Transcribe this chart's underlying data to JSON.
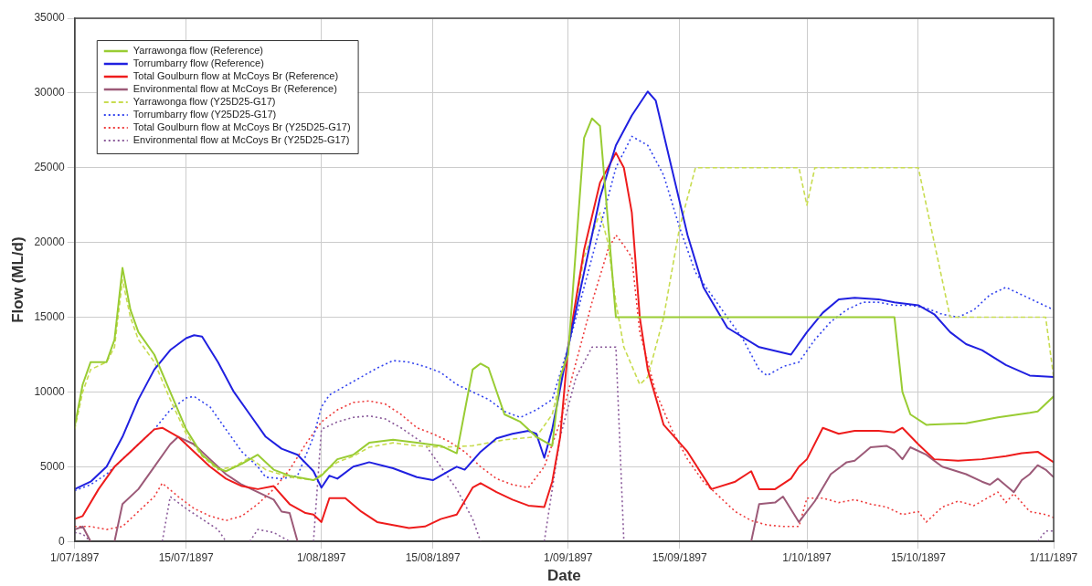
{
  "chart_data": {
    "type": "line",
    "xlabel": "Date",
    "ylabel": "Flow (ML/d)",
    "grid": true,
    "legend": "top left",
    "marker": "none",
    "xlim": [
      "1897-07-01",
      "1897-11-01"
    ],
    "xticks": [
      {
        "value": "1897-07-01",
        "label": "1/07/1897"
      },
      {
        "value": "1897-07-15",
        "label": "15/07/1897"
      },
      {
        "value": "1897-08-01",
        "label": "1/08/1897"
      },
      {
        "value": "1897-08-15",
        "label": "15/08/1897"
      },
      {
        "value": "1897-09-01",
        "label": "1/09/1897"
      },
      {
        "value": "1897-09-15",
        "label": "15/09/1897"
      },
      {
        "value": "1897-10-01",
        "label": "1/10/1897"
      },
      {
        "value": "1897-10-15",
        "label": "15/10/1897"
      },
      {
        "value": "1897-11-01",
        "label": "1/11/1897"
      }
    ],
    "ylim": [
      0,
      35000
    ],
    "yticks": [
      0,
      5000,
      10000,
      15000,
      20000,
      25000,
      30000,
      35000
    ],
    "series": [
      {
        "name": "Yarrawonga flow (Reference)",
        "color": "#99cc33",
        "line_style": "solid",
        "x": [
          "1897-07-01",
          "1897-07-02",
          "1897-07-03",
          "1897-07-05",
          "1897-07-06",
          "1897-07-07",
          "1897-07-08",
          "1897-07-09",
          "1897-07-11",
          "1897-07-13",
          "1897-07-15",
          "1897-07-17",
          "1897-07-19",
          "1897-07-20",
          "1897-07-22",
          "1897-07-24",
          "1897-07-26",
          "1897-07-28",
          "1897-07-31",
          "1897-08-01",
          "1897-08-03",
          "1897-08-05",
          "1897-08-07",
          "1897-08-10",
          "1897-08-13",
          "1897-08-16",
          "1897-08-18",
          "1897-08-20",
          "1897-08-21",
          "1897-08-22",
          "1897-08-24",
          "1897-08-26",
          "1897-08-28",
          "1897-08-30",
          "1897-08-31",
          "1897-09-01",
          "1897-09-03",
          "1897-09-04",
          "1897-09-05",
          "1897-09-07",
          "1897-10-12",
          "1897-10-13",
          "1897-10-14",
          "1897-10-16",
          "1897-10-21",
          "1897-10-25",
          "1897-10-29",
          "1897-10-30",
          "1897-11-01"
        ],
        "values": [
          7700,
          10500,
          12000,
          12000,
          13500,
          18300,
          15500,
          14000,
          12500,
          10000,
          7500,
          5800,
          4900,
          4700,
          5200,
          5800,
          4800,
          4400,
          4100,
          4400,
          5500,
          5800,
          6600,
          6800,
          6600,
          6400,
          5900,
          11500,
          11900,
          11600,
          8500,
          8000,
          7000,
          6400,
          11000,
          12500,
          27000,
          28300,
          27800,
          15000,
          15000,
          10000,
          8500,
          7800,
          7900,
          8300,
          8600,
          8700,
          9700
        ]
      },
      {
        "name": "Torrumbarry flow (Reference)",
        "color": "#2020e0",
        "line_style": "solid",
        "x": [
          "1897-07-01",
          "1897-07-03",
          "1897-07-05",
          "1897-07-07",
          "1897-07-09",
          "1897-07-11",
          "1897-07-13",
          "1897-07-15",
          "1897-07-16",
          "1897-07-17",
          "1897-07-19",
          "1897-07-21",
          "1897-07-23",
          "1897-07-25",
          "1897-07-27",
          "1897-07-29",
          "1897-07-31",
          "1897-08-01",
          "1897-08-02",
          "1897-08-03",
          "1897-08-05",
          "1897-08-07",
          "1897-08-10",
          "1897-08-13",
          "1897-08-15",
          "1897-08-17",
          "1897-08-18",
          "1897-08-19",
          "1897-08-21",
          "1897-08-23",
          "1897-08-25",
          "1897-08-27",
          "1897-08-28",
          "1897-08-29",
          "1897-08-30",
          "1897-09-01",
          "1897-09-03",
          "1897-09-05",
          "1897-09-07",
          "1897-09-09",
          "1897-09-11",
          "1897-09-12",
          "1897-09-14",
          "1897-09-16",
          "1897-09-18",
          "1897-09-21",
          "1897-09-25",
          "1897-09-29",
          "1897-10-01",
          "1897-10-03",
          "1897-10-05",
          "1897-10-07",
          "1897-10-10",
          "1897-10-12",
          "1897-10-15",
          "1897-10-17",
          "1897-10-19",
          "1897-10-21",
          "1897-10-23",
          "1897-10-26",
          "1897-10-29",
          "1897-11-01"
        ],
        "values": [
          3500,
          4000,
          5000,
          7000,
          9500,
          11500,
          12800,
          13600,
          13800,
          13700,
          12000,
          10000,
          8500,
          7000,
          6200,
          5800,
          4700,
          3600,
          4400,
          4200,
          5000,
          5300,
          4900,
          4300,
          4100,
          4700,
          5000,
          4800,
          6000,
          6900,
          7200,
          7400,
          7200,
          5600,
          7500,
          13000,
          18000,
          23000,
          26500,
          28500,
          30100,
          29500,
          25000,
          20500,
          17000,
          14300,
          13000,
          12500,
          14000,
          15300,
          16200,
          16300,
          16200,
          16000,
          15800,
          15200,
          14000,
          13200,
          12800,
          11800,
          11100,
          11000
        ]
      },
      {
        "name": "Total Goulburn flow at McCoys Br (Reference)",
        "color": "#ee1c1c",
        "line_style": "solid",
        "x": [
          "1897-07-01",
          "1897-07-02",
          "1897-07-04",
          "1897-07-06",
          "1897-07-08",
          "1897-07-10",
          "1897-07-11",
          "1897-07-12",
          "1897-07-14",
          "1897-07-16",
          "1897-07-18",
          "1897-07-20",
          "1897-07-22",
          "1897-07-24",
          "1897-07-26",
          "1897-07-28",
          "1897-07-30",
          "1897-07-31",
          "1897-08-01",
          "1897-08-02",
          "1897-08-04",
          "1897-08-06",
          "1897-08-08",
          "1897-08-10",
          "1897-08-12",
          "1897-08-14",
          "1897-08-16",
          "1897-08-18",
          "1897-08-20",
          "1897-08-21",
          "1897-08-23",
          "1897-08-25",
          "1897-08-27",
          "1897-08-29",
          "1897-08-30",
          "1897-08-31",
          "1897-09-01",
          "1897-09-03",
          "1897-09-05",
          "1897-09-07",
          "1897-09-08",
          "1897-09-09",
          "1897-09-10",
          "1897-09-11",
          "1897-09-13",
          "1897-09-16",
          "1897-09-19",
          "1897-09-22",
          "1897-09-24",
          "1897-09-25",
          "1897-09-27",
          "1897-09-29",
          "1897-09-30",
          "1897-10-01",
          "1897-10-03",
          "1897-10-05",
          "1897-10-07",
          "1897-10-10",
          "1897-10-12",
          "1897-10-13",
          "1897-10-15",
          "1897-10-17",
          "1897-10-20",
          "1897-10-23",
          "1897-10-26",
          "1897-10-28",
          "1897-10-30",
          "1897-11-01"
        ],
        "values": [
          1500,
          1700,
          3500,
          5000,
          6000,
          7000,
          7500,
          7600,
          7000,
          6000,
          5000,
          4200,
          3700,
          3500,
          3700,
          2500,
          1900,
          1800,
          1300,
          2900,
          2900,
          2000,
          1300,
          1100,
          900,
          1000,
          1500,
          1800,
          3600,
          3900,
          3300,
          2800,
          2400,
          2300,
          4000,
          7000,
          13000,
          19500,
          24000,
          26000,
          25000,
          22000,
          15000,
          11500,
          7800,
          6000,
          3500,
          4000,
          4700,
          3500,
          3500,
          4200,
          5000,
          5500,
          7600,
          7200,
          7400,
          7400,
          7300,
          7600,
          6500,
          5500,
          5400,
          5500,
          5700,
          5900,
          6000,
          5300
        ]
      },
      {
        "name": "Environmental flow at McCoys Br (Reference)",
        "color": "#9c5a78",
        "line_style": "solid",
        "x": [
          "1897-07-01",
          "1897-07-02",
          "1897-07-03",
          "1897-07-04",
          "1897-07-06",
          "1897-07-07",
          "1897-07-09",
          "1897-07-11",
          "1897-07-13",
          "1897-07-14",
          "1897-07-16",
          "1897-07-18",
          "1897-07-20",
          "1897-07-22",
          "1897-07-24",
          "1897-07-26",
          "1897-07-27",
          "1897-07-28",
          "1897-07-29",
          "1897-08-15",
          "1897-09-24",
          "1897-09-25",
          "1897-09-27",
          "1897-09-28",
          "1897-09-30",
          "1897-10-02",
          "1897-10-04",
          "1897-10-06",
          "1897-10-07",
          "1897-10-09",
          "1897-10-11",
          "1897-10-12",
          "1897-10-13",
          "1897-10-14",
          "1897-10-16",
          "1897-10-18",
          "1897-10-21",
          "1897-10-23",
          "1897-10-24",
          "1897-10-25",
          "1897-10-27",
          "1897-10-28",
          "1897-10-29",
          "1897-10-30",
          "1897-10-31",
          "1897-11-01"
        ],
        "values": [
          800,
          1000,
          0,
          null,
          0,
          2500,
          3500,
          5000,
          6500,
          7000,
          6500,
          5500,
          4500,
          3800,
          3300,
          2800,
          2000,
          1900,
          0,
          null,
          0,
          2500,
          2600,
          3000,
          1300,
          2700,
          4500,
          5300,
          5400,
          6300,
          6400,
          6100,
          5500,
          6300,
          5800,
          5000,
          4500,
          4000,
          3800,
          4200,
          3300,
          4100,
          4500,
          5100,
          4800,
          4300
        ]
      },
      {
        "name": "Yarrawonga flow (Y25D25-G17)",
        "color": "#c8dc50",
        "line_style": "dashed",
        "x": [
          "1897-07-01",
          "1897-07-02",
          "1897-07-03",
          "1897-07-05",
          "1897-07-06",
          "1897-07-07",
          "1897-07-08",
          "1897-07-09",
          "1897-07-11",
          "1897-07-13",
          "1897-07-15",
          "1897-07-17",
          "1897-07-19",
          "1897-07-21",
          "1897-07-23",
          "1897-07-25",
          "1897-07-28",
          "1897-07-31",
          "1897-08-01",
          "1897-08-03",
          "1897-08-05",
          "1897-08-07",
          "1897-08-10",
          "1897-08-13",
          "1897-08-16",
          "1897-08-20",
          "1897-08-24",
          "1897-08-28",
          "1897-08-30",
          "1897-09-01",
          "1897-09-03",
          "1897-09-05",
          "1897-09-06",
          "1897-09-07",
          "1897-09-08",
          "1897-09-10",
          "1897-09-11",
          "1897-09-13",
          "1897-09-15",
          "1897-09-17",
          "1897-09-30",
          "1897-10-01",
          "1897-10-02",
          "1897-10-15",
          "1897-10-17",
          "1897-10-19",
          "1897-10-31",
          "1897-11-01"
        ],
        "values": [
          7500,
          10000,
          11500,
          12000,
          13000,
          17500,
          15000,
          13500,
          12000,
          9500,
          7200,
          5700,
          4800,
          5000,
          5600,
          4800,
          4300,
          4100,
          4500,
          5300,
          5700,
          6300,
          6600,
          6400,
          6300,
          6400,
          6800,
          7000,
          8500,
          13000,
          19000,
          22000,
          20000,
          16000,
          13000,
          10500,
          11000,
          15000,
          21000,
          25000,
          25000,
          22500,
          25000,
          25000,
          20000,
          15000,
          15000,
          11000
        ]
      },
      {
        "name": "Torrumbarry flow (Y25D25-G17)",
        "color": "#3344ee",
        "line_style": "dotted",
        "x": [
          "1897-07-01",
          "1897-07-03",
          "1897-07-05",
          "1897-07-07",
          "1897-07-09",
          "1897-07-11",
          "1897-07-13",
          "1897-07-15",
          "1897-07-16",
          "1897-07-18",
          "1897-07-20",
          "1897-07-22",
          "1897-07-24",
          "1897-07-25",
          "1897-07-27",
          "1897-07-29",
          "1897-07-31",
          "1897-08-01",
          "1897-08-02",
          "1897-08-04",
          "1897-08-06",
          "1897-08-08",
          "1897-08-10",
          "1897-08-12",
          "1897-08-14",
          "1897-08-16",
          "1897-08-18",
          "1897-08-20",
          "1897-08-22",
          "1897-08-24",
          "1897-08-26",
          "1897-08-28",
          "1897-08-30",
          "1897-09-01",
          "1897-09-03",
          "1897-09-05",
          "1897-09-07",
          "1897-09-09",
          "1897-09-11",
          "1897-09-13",
          "1897-09-15",
          "1897-09-17",
          "1897-09-19",
          "1897-09-21",
          "1897-09-23",
          "1897-09-25",
          "1897-09-26",
          "1897-09-28",
          "1897-09-30",
          "1897-10-02",
          "1897-10-04",
          "1897-10-06",
          "1897-10-08",
          "1897-10-10",
          "1897-10-12",
          "1897-10-14",
          "1897-10-16",
          "1897-10-18",
          "1897-10-20",
          "1897-10-22",
          "1897-10-24",
          "1897-10-26",
          "1897-10-28",
          "1897-10-30",
          "1897-11-01"
        ],
        "values": [
          3400,
          3800,
          4500,
          5500,
          6500,
          7500,
          8800,
          9600,
          9700,
          9000,
          7500,
          6000,
          5000,
          4300,
          4200,
          4400,
          7000,
          9000,
          9800,
          10400,
          11000,
          11600,
          12100,
          12000,
          11700,
          11300,
          10500,
          10000,
          9500,
          8700,
          8300,
          8800,
          9500,
          13000,
          17000,
          21000,
          25000,
          27100,
          26500,
          24500,
          21000,
          18000,
          16500,
          15000,
          13500,
          11500,
          11100,
          11700,
          12000,
          13500,
          14700,
          15500,
          16000,
          16000,
          15800,
          15800,
          15600,
          15200,
          15000,
          15500,
          16500,
          17000,
          16500,
          16000,
          15500
        ]
      },
      {
        "name": "Total Goulburn flow at McCoys Br (Y25D25-G17)",
        "color": "#ee3b3b",
        "line_style": "dotted",
        "x": [
          "1897-07-01",
          "1897-07-03",
          "1897-07-05",
          "1897-07-07",
          "1897-07-09",
          "1897-07-11",
          "1897-07-12",
          "1897-07-14",
          "1897-07-16",
          "1897-07-18",
          "1897-07-20",
          "1897-07-22",
          "1897-07-24",
          "1897-07-26",
          "1897-07-28",
          "1897-07-30",
          "1897-08-01",
          "1897-08-03",
          "1897-08-05",
          "1897-08-07",
          "1897-08-09",
          "1897-08-11",
          "1897-08-13",
          "1897-08-15",
          "1897-08-17",
          "1897-08-19",
          "1897-08-21",
          "1897-08-23",
          "1897-08-25",
          "1897-08-27",
          "1897-08-29",
          "1897-08-31",
          "1897-09-02",
          "1897-09-04",
          "1897-09-06",
          "1897-09-07",
          "1897-09-08",
          "1897-09-09",
          "1897-09-10",
          "1897-09-12",
          "1897-09-14",
          "1897-09-16",
          "1897-09-18",
          "1897-09-20",
          "1897-09-22",
          "1897-09-24",
          "1897-09-26",
          "1897-09-28",
          "1897-09-30",
          "1897-10-01",
          "1897-10-03",
          "1897-10-05",
          "1897-10-07",
          "1897-10-09",
          "1897-10-11",
          "1897-10-13",
          "1897-10-15",
          "1897-10-16",
          "1897-10-18",
          "1897-10-20",
          "1897-10-22",
          "1897-10-24",
          "1897-10-25",
          "1897-10-26",
          "1897-10-27",
          "1897-10-29",
          "1897-10-31",
          "1897-11-01"
        ],
        "values": [
          1000,
          1000,
          800,
          1000,
          2000,
          3000,
          3900,
          3000,
          2200,
          1700,
          1400,
          1700,
          2500,
          3500,
          4800,
          6500,
          8000,
          8800,
          9300,
          9400,
          9200,
          8500,
          7600,
          7200,
          6700,
          6000,
          5000,
          4200,
          3800,
          3600,
          5000,
          8000,
          12000,
          16000,
          19500,
          20500,
          19800,
          19000,
          14000,
          10000,
          7500,
          5500,
          4000,
          3000,
          2000,
          1400,
          1100,
          1000,
          1000,
          2900,
          2900,
          2600,
          2800,
          2500,
          2300,
          1800,
          2000,
          1300,
          2300,
          2700,
          2400,
          3000,
          3300,
          2600,
          3200,
          2000,
          1800,
          1600
        ]
      },
      {
        "name": "Environmental flow at McCoys Br (Y25D25-G17)",
        "color": "#8a5a9a",
        "line_style": "dotted",
        "x": [
          "1897-07-01",
          "1897-07-02",
          "1897-07-03",
          "1897-07-06",
          "1897-07-12",
          "1897-07-13",
          "1897-07-15",
          "1897-07-17",
          "1897-07-19",
          "1897-07-20",
          "1897-07-21",
          "1897-07-23",
          "1897-07-24",
          "1897-07-26",
          "1897-07-28",
          "1897-07-29",
          "1897-07-31",
          "1897-08-01",
          "1897-08-03",
          "1897-08-05",
          "1897-08-07",
          "1897-08-09",
          "1897-08-11",
          "1897-08-14",
          "1897-08-16",
          "1897-08-18",
          "1897-08-20",
          "1897-08-21",
          "1897-08-25",
          "1897-08-29",
          "1897-08-31",
          "1897-09-02",
          "1897-09-04",
          "1897-09-07",
          "1897-09-08",
          "1897-09-20",
          "1897-10-30",
          "1897-10-31",
          "1897-11-01"
        ],
        "values": [
          600,
          500,
          0,
          null,
          0,
          3000,
          2200,
          1500,
          800,
          0,
          null,
          0,
          800,
          600,
          0,
          null,
          0,
          7500,
          8000,
          8300,
          8400,
          8200,
          7600,
          6500,
          5000,
          3500,
          1500,
          0,
          null,
          0,
          7000,
          11000,
          13000,
          13000,
          0,
          null,
          0,
          700,
          700
        ]
      }
    ]
  }
}
